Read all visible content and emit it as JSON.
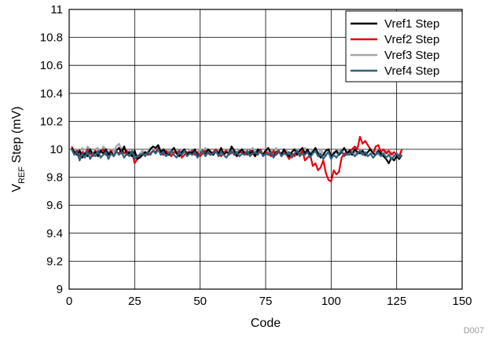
{
  "chart_data": {
    "type": "line",
    "xlabel": "Code",
    "ylabel_main": "V",
    "ylabel_sub": "REF",
    "ylabel_rest": " Step (mV)",
    "xlim": [
      0,
      150
    ],
    "ylim": [
      9,
      11
    ],
    "xticks": [
      0,
      25,
      50,
      75,
      100,
      125,
      150
    ],
    "yticks": [
      9,
      9.2,
      9.4,
      9.6,
      9.8,
      10,
      10.2,
      10.4,
      10.6,
      10.8,
      11
    ],
    "xtick_labels": [
      "0",
      "25",
      "50",
      "75",
      "100",
      "125",
      "150"
    ],
    "ytick_labels": [
      "9",
      "9.2",
      "9.4",
      "9.6",
      "9.8",
      "10",
      "10.2",
      "10.4",
      "10.6",
      "10.8",
      "11"
    ],
    "grid": true,
    "legend_position": "top-right",
    "footnote": "D007",
    "x": [
      1,
      2,
      3,
      4,
      5,
      6,
      7,
      8,
      9,
      10,
      11,
      12,
      13,
      14,
      15,
      16,
      17,
      18,
      19,
      20,
      21,
      22,
      23,
      24,
      25,
      26,
      27,
      28,
      29,
      30,
      31,
      32,
      33,
      34,
      35,
      36,
      37,
      38,
      39,
      40,
      41,
      42,
      43,
      44,
      45,
      46,
      47,
      48,
      49,
      50,
      51,
      52,
      53,
      54,
      55,
      56,
      57,
      58,
      59,
      60,
      61,
      62,
      63,
      64,
      65,
      66,
      67,
      68,
      69,
      70,
      71,
      72,
      73,
      74,
      75,
      76,
      77,
      78,
      79,
      80,
      81,
      82,
      83,
      84,
      85,
      86,
      87,
      88,
      89,
      90,
      91,
      92,
      93,
      94,
      95,
      96,
      97,
      98,
      99,
      100,
      101,
      102,
      103,
      104,
      105,
      106,
      107,
      108,
      109,
      110,
      111,
      112,
      113,
      114,
      115,
      116,
      117,
      118,
      119,
      120,
      121,
      122,
      123,
      124,
      125,
      126,
      127
    ],
    "series": [
      {
        "name": "Vref1 Step",
        "color": "#000000",
        "values": [
          10.01,
          9.98,
          9.96,
          9.99,
          9.94,
          9.97,
          9.95,
          10.0,
          9.96,
          9.98,
          9.95,
          9.99,
          9.97,
          10.0,
          9.96,
          9.98,
          9.95,
          9.99,
          10.01,
          9.97,
          10.02,
          9.96,
          9.98,
          9.95,
          9.99,
          9.93,
          9.94,
          9.96,
          9.98,
          9.97,
          10.0,
          10.02,
          10.01,
          10.03,
          9.98,
          10.0,
          9.97,
          9.96,
          9.99,
          10.01,
          9.97,
          9.95,
          9.98,
          10.0,
          9.96,
          9.98,
          9.97,
          10.0,
          9.95,
          9.97,
          9.99,
          9.96,
          10.0,
          9.98,
          9.96,
          9.99,
          9.97,
          10.01,
          9.96,
          9.98,
          9.97,
          10.02,
          9.99,
          9.95,
          9.98,
          10.0,
          9.96,
          9.98,
          9.97,
          9.99,
          9.95,
          10.0,
          9.98,
          9.96,
          9.99,
          10.01,
          9.97,
          9.95,
          9.98,
          9.99,
          9.96,
          10.0,
          9.97,
          9.95,
          9.98,
          10.0,
          9.96,
          9.99,
          10.01,
          9.97,
          10.0,
          9.96,
          9.98,
          10.01,
          9.97,
          9.94,
          9.96,
          9.99,
          10.0,
          9.95,
          9.97,
          9.99,
          9.96,
          9.98,
          10.01,
          9.97,
          9.99,
          9.96,
          10.0,
          9.98,
          9.97,
          9.99,
          9.96,
          9.98,
          10.0,
          9.97,
          9.96,
          9.99,
          9.97,
          9.95,
          9.93,
          9.9,
          9.94,
          9.92,
          9.95,
          9.93,
          9.96
        ]
      },
      {
        "name": "Vref2 Step",
        "color": "#e8000b",
        "values": [
          10.02,
          9.97,
          9.99,
          9.95,
          9.98,
          9.96,
          10.0,
          9.97,
          9.95,
          9.99,
          9.96,
          9.98,
          10.0,
          9.96,
          9.97,
          9.99,
          9.95,
          9.98,
          9.97,
          10.0,
          9.97,
          9.99,
          9.96,
          9.98,
          9.9,
          9.93,
          9.95,
          9.96,
          9.98,
          9.96,
          9.97,
          9.99,
          9.98,
          10.01,
          9.97,
          9.96,
          9.99,
          9.97,
          9.95,
          9.98,
          9.97,
          9.99,
          9.94,
          9.96,
          9.98,
          9.97,
          9.99,
          9.96,
          9.98,
          9.95,
          9.97,
          9.99,
          9.97,
          9.96,
          9.98,
          10.0,
          9.97,
          9.95,
          9.98,
          9.99,
          9.96,
          9.98,
          9.97,
          9.95,
          9.99,
          9.97,
          9.98,
          9.96,
          9.99,
          9.97,
          9.95,
          9.98,
          10.0,
          9.96,
          9.98,
          9.97,
          9.95,
          9.99,
          9.96,
          9.98,
          9.97,
          9.99,
          9.96,
          9.93,
          9.97,
          9.95,
          9.98,
          9.96,
          9.99,
          9.92,
          9.94,
          9.96,
          9.88,
          9.9,
          9.85,
          9.87,
          9.92,
          9.83,
          9.78,
          9.77,
          9.85,
          9.82,
          9.84,
          9.94,
          9.97,
          9.96,
          9.99,
          10.0,
          10.02,
          10.0,
          10.09,
          10.04,
          10.06,
          10.03,
          10.0,
          9.97,
          10.02,
          10.03,
          9.98,
          10.0,
          9.97,
          9.99,
          9.96,
          9.98,
          9.96,
          9.95,
          10.0
        ]
      },
      {
        "name": "Vref3 Step",
        "color": "#a6a6a6",
        "values": [
          9.99,
          9.97,
          10.0,
          9.98,
          10.01,
          9.96,
          10.02,
          10.0,
          9.97,
          10.0,
          10.01,
          9.98,
          10.02,
          10.0,
          9.97,
          10.0,
          9.98,
          10.02,
          10.04,
          10.0,
          10.02,
          9.97,
          9.99,
          9.96,
          9.98,
          9.95,
          9.97,
          9.99,
          9.96,
          9.98,
          10.01,
          10.0,
          9.97,
          9.99,
          10.0,
          9.98,
          9.97,
          9.99,
          9.96,
          10.01,
          9.99,
          9.97,
          10.0,
          9.98,
          9.96,
          10.0,
          9.99,
          9.97,
          9.98,
          10.0,
          9.98,
          10.01,
          9.97,
          9.99,
          9.96,
          9.98,
          10.0,
          9.99,
          9.97,
          9.98,
          10.0,
          9.97,
          9.99,
          9.98,
          10.0,
          9.97,
          9.99,
          9.96,
          9.98,
          10.01,
          9.99,
          9.97,
          9.98,
          9.96,
          10.0,
          9.98,
          9.99,
          9.97,
          10.01,
          9.98,
          9.96,
          10.0,
          9.99,
          9.97,
          9.98,
          10.0,
          9.97,
          9.99,
          9.98,
          10.01,
          9.99,
          9.97,
          10.0,
          9.98,
          9.96,
          10.0,
          9.97,
          9.95,
          9.99,
          9.96,
          9.98,
          9.97,
          10.0,
          9.98,
          9.96,
          9.99,
          9.97,
          10.0,
          9.98,
          9.96,
          9.99,
          9.97,
          9.95,
          9.98,
          10.0,
          9.97,
          9.99,
          9.96,
          9.98,
          9.97,
          9.99,
          9.96,
          9.98,
          9.95,
          9.97,
          9.96,
          9.98
        ]
      },
      {
        "name": "Vref4 Step",
        "color": "#2e5f7f",
        "values": [
          10.0,
          9.96,
          9.98,
          9.92,
          9.97,
          9.94,
          9.99,
          9.93,
          9.97,
          9.95,
          9.99,
          9.94,
          9.96,
          9.98,
          9.93,
          9.97,
          9.95,
          9.99,
          9.96,
          9.98,
          9.94,
          9.97,
          9.95,
          9.99,
          9.93,
          9.95,
          9.96,
          9.97,
          9.95,
          9.98,
          9.96,
          9.99,
          9.97,
          10.0,
          9.96,
          9.98,
          9.95,
          9.97,
          9.99,
          9.96,
          9.94,
          9.98,
          9.96,
          9.99,
          9.95,
          9.97,
          9.96,
          9.98,
          9.94,
          9.97,
          9.99,
          9.95,
          9.98,
          9.96,
          9.97,
          9.99,
          9.95,
          9.98,
          9.96,
          9.94,
          9.97,
          9.99,
          9.96,
          9.98,
          9.95,
          9.97,
          9.96,
          9.99,
          9.95,
          9.97,
          9.98,
          9.96,
          9.99,
          9.95,
          9.97,
          9.96,
          9.98,
          9.94,
          9.97,
          9.99,
          9.95,
          9.97,
          9.96,
          9.98,
          9.94,
          9.97,
          9.99,
          9.95,
          9.97,
          9.96,
          9.98,
          9.94,
          9.97,
          9.99,
          9.95,
          9.97,
          9.93,
          9.96,
          9.98,
          9.93,
          9.96,
          9.94,
          9.97,
          9.99,
          9.95,
          9.97,
          9.96,
          9.98,
          9.95,
          9.97,
          9.99,
          9.96,
          9.98,
          9.95,
          9.97,
          9.94,
          9.96,
          9.98,
          9.95,
          9.97,
          9.94,
          9.96,
          9.93,
          9.95,
          9.97,
          9.94,
          9.96
        ]
      }
    ]
  }
}
